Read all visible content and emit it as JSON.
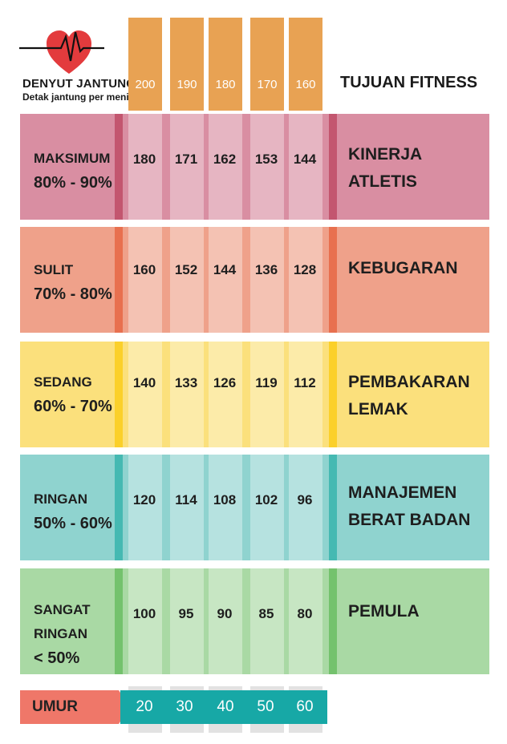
{
  "header": {
    "title": "DENYUT JANTUNG",
    "subtitle": "Detak jantung per menit",
    "goal_heading": "TUJUAN FITNESS"
  },
  "max_heart_rates": [
    "200",
    "190",
    "180",
    "170",
    "160"
  ],
  "zones": [
    {
      "name": "MAKSIMUM",
      "range": "80% - 90%",
      "goal_line1": "KINERJA",
      "goal_line2": "ATLETIS",
      "values": [
        "180",
        "171",
        "162",
        "153",
        "144"
      ],
      "color": "#d98ea2",
      "stripe": "#c3566f"
    },
    {
      "name": "SULIT",
      "range": "70% - 80%",
      "goal_line1": "KEBUGARAN",
      "goal_line2": "",
      "values": [
        "160",
        "152",
        "144",
        "136",
        "128"
      ],
      "color": "#efa18a",
      "stripe": "#e8704f"
    },
    {
      "name": "SEDANG",
      "range": "60% - 70%",
      "goal_line1": "PEMBAKARAN",
      "goal_line2": "LEMAK",
      "values": [
        "140",
        "133",
        "126",
        "119",
        "112"
      ],
      "color": "#fbe07c",
      "stripe": "#fbd02a"
    },
    {
      "name": "RINGAN",
      "range": "50% - 60%",
      "goal_line1": "MANAJEMEN",
      "goal_line2": "BERAT BADAN",
      "values": [
        "120",
        "114",
        "108",
        "102",
        "96"
      ],
      "color": "#8fd3cf",
      "stripe": "#45b9b2"
    },
    {
      "name": "SANGAT",
      "name2": "RINGAN",
      "range": "< 50%",
      "goal_line1": "PEMULA",
      "goal_line2": "",
      "values": [
        "100",
        "95",
        "90",
        "85",
        "80"
      ],
      "color": "#a9d9a4",
      "stripe": "#74c26d"
    }
  ],
  "age_bar": {
    "label": "UMUR",
    "ages": [
      "20",
      "30",
      "40",
      "50",
      "60"
    ],
    "label_color": "#ef7769",
    "ages_color": "#17a8a6"
  },
  "icons": {
    "header": "heart-pulse-icon"
  }
}
